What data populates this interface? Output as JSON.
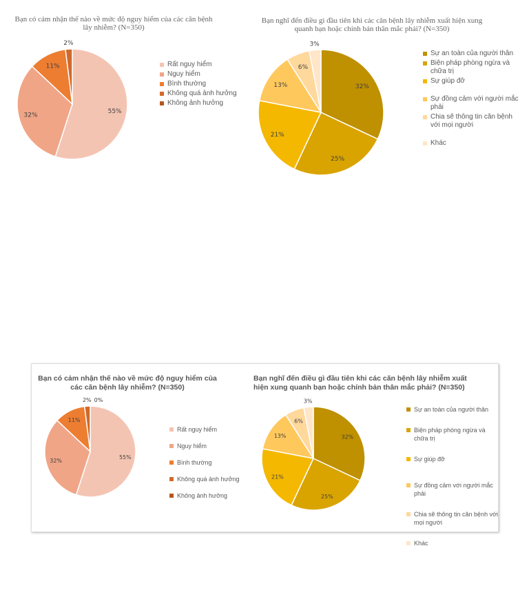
{
  "chart_data": [
    {
      "type": "pie",
      "title": "Bạn có cảm nhận thế nào về mức độ nguy hiểm của các căn bệnh lây nhiễm? (N=350)",
      "categories": [
        "Rất nguy hiểm",
        "Nguy hiểm",
        "Bình thường",
        "Không quá ảnh hưởng",
        "Không ảnh hưởng"
      ],
      "values": [
        55,
        32,
        11,
        2,
        0
      ],
      "labels": [
        "55%",
        "32%",
        "11%",
        "2%",
        ""
      ],
      "colors": [
        "#F4C4B3",
        "#F0A587",
        "#ED7D31",
        "#D2692A",
        "#B5561F"
      ],
      "legend": "right"
    },
    {
      "type": "pie",
      "title": "Bạn nghĩ đến điều gì đầu tiên khi các căn bệnh lây nhiễm xuất hiện xung quanh bạn hoặc chính bản thân mắc phải? (N=350)",
      "categories": [
        "Sự an toàn của người thân",
        "Biện pháp phòng ngừa và chữa trị",
        "Sự giúp đỡ",
        "Sự đồng cảm với người mắc phải",
        "Chia sẽ thông tin căn bệnh với mọi người",
        "Khác"
      ],
      "values": [
        32,
        25,
        21,
        13,
        6,
        3
      ],
      "labels": [
        "32%",
        "25%",
        "21%",
        "13%",
        "6%",
        "3%"
      ],
      "colors": [
        "#BF9000",
        "#D9A400",
        "#F4B800",
        "#FFC85C",
        "#FFD89C",
        "#FFE6C8"
      ],
      "legend": "right"
    },
    {
      "type": "pie",
      "title": "Bạn có cảm nhận thế nào về mức độ nguy hiểm của các căn bệnh lây nhiễm? (N=350)",
      "categories": [
        "Rất nguy hiểm",
        "Nguy hiểm",
        "Bình thường",
        "Không quá ảnh hưởng",
        "Không ảnh hưởng"
      ],
      "values": [
        55,
        32,
        11,
        2,
        0
      ],
      "labels": [
        "55%",
        "32%",
        "11%",
        "2%",
        "0%"
      ],
      "colors": [
        "#F4C4B3",
        "#F0A587",
        "#ED7D31",
        "#D2692A",
        "#B5561F"
      ],
      "legend": "right"
    },
    {
      "type": "pie",
      "title": "Bạn nghĩ đến điều gì đầu tiên khi các căn bệnh lây nhiễm xuất hiện xung quanh bạn hoặc chính bản thân mắc phải? (N=350)",
      "categories": [
        "Sự an toàn của người thân",
        "Biện pháp phòng ngừa và chữa trị",
        "Sự giúp đỡ",
        "Sự đồng cảm với người mắc phải",
        "Chia sẽ thông tin căn bệnh với mọi người",
        "Khác"
      ],
      "values": [
        32,
        25,
        21,
        13,
        6,
        3
      ],
      "labels": [
        "32%",
        "25%",
        "21%",
        "13%",
        "6%",
        "3%"
      ],
      "colors": [
        "#BF9000",
        "#D9A400",
        "#F4B800",
        "#FFC85C",
        "#FFD89C",
        "#FFE6C8"
      ],
      "legend": "right"
    }
  ]
}
